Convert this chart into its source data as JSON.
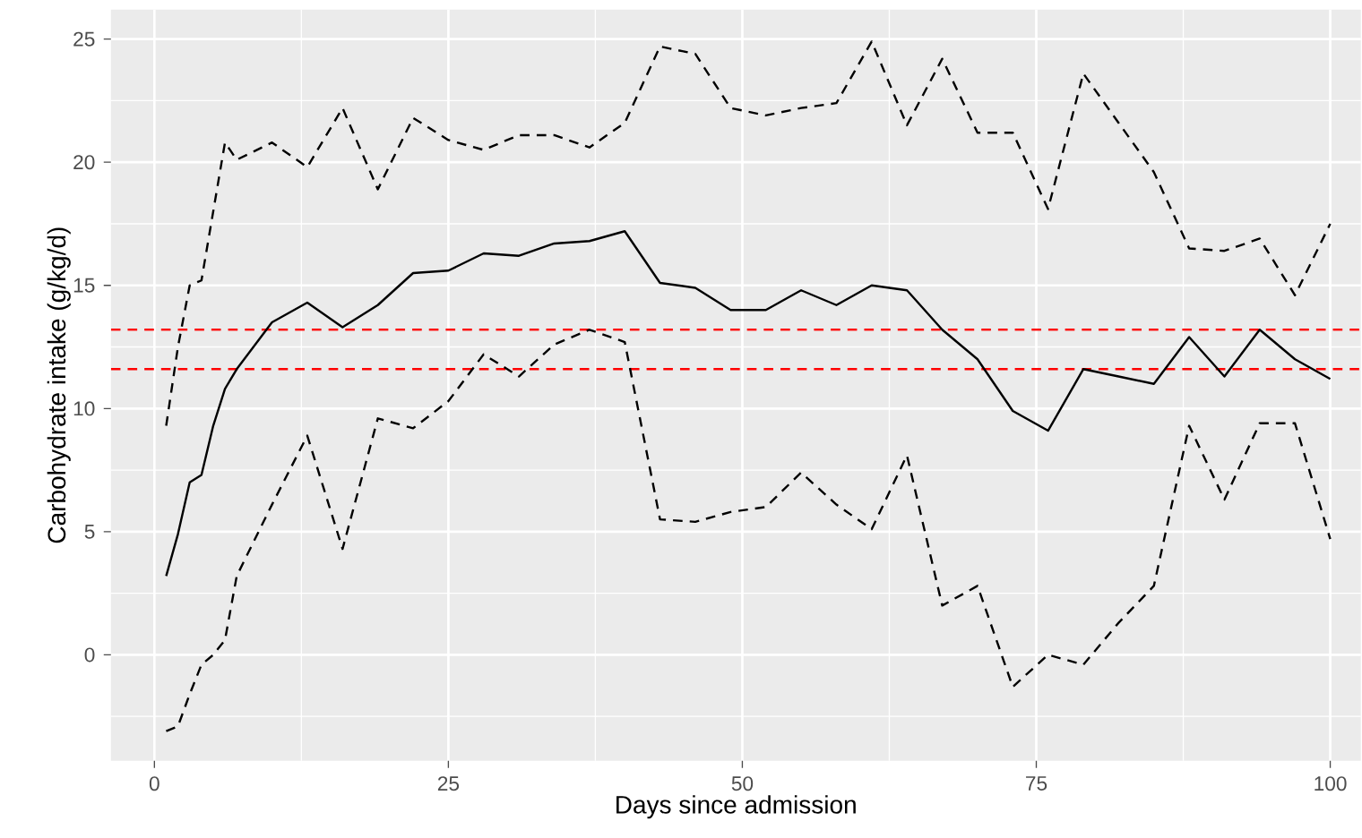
{
  "chart_data": {
    "type": "line",
    "xlabel": "Days since admission",
    "ylabel": "Carbohydrate intake (g/kg/d)",
    "x": [
      1,
      2,
      3,
      4,
      5,
      6,
      7,
      10,
      13,
      16,
      19,
      22,
      25,
      28,
      31,
      34,
      37,
      40,
      43,
      46,
      49,
      52,
      55,
      58,
      61,
      64,
      67,
      70,
      73,
      76,
      79,
      82,
      85,
      88,
      91,
      94,
      97,
      100
    ],
    "series": [
      {
        "color": "#000000",
        "line_style": "dashed",
        "values": [
          9.3,
          12.5,
          15.0,
          15.2,
          18.0,
          20.8,
          20.1,
          20.8,
          19.8,
          22.2,
          18.9,
          21.8,
          20.9,
          20.5,
          21.1,
          21.1,
          20.6,
          21.6,
          24.7,
          24.4,
          22.2,
          21.9,
          22.2,
          22.4,
          24.9,
          21.5,
          24.2,
          21.2,
          21.2,
          18.1,
          23.6,
          21.6,
          19.6,
          16.5,
          16.4,
          16.9,
          14.6,
          17.5
        ]
      },
      {
        "color": "#000000",
        "line_style": "solid",
        "values": [
          3.2,
          4.9,
          7.0,
          7.3,
          9.3,
          10.8,
          11.6,
          13.5,
          14.3,
          13.3,
          14.2,
          15.5,
          15.6,
          16.3,
          16.2,
          16.7,
          16.8,
          17.2,
          15.1,
          14.9,
          14.0,
          14.0,
          14.8,
          14.2,
          15.0,
          14.8,
          13.2,
          12.0,
          9.9,
          9.1,
          11.6,
          11.3,
          11.0,
          12.9,
          11.3,
          13.2,
          12.0,
          11.2
        ]
      },
      {
        "color": "#000000",
        "line_style": "dashed",
        "values": [
          -3.1,
          -2.9,
          -1.6,
          -0.4,
          0.0,
          0.6,
          3.2,
          6.1,
          8.9,
          4.3,
          9.6,
          9.2,
          10.3,
          12.2,
          11.3,
          12.6,
          13.2,
          12.7,
          5.5,
          5.4,
          5.8,
          6.0,
          7.4,
          6.1,
          5.1,
          8.1,
          2.0,
          2.8,
          -1.3,
          0.0,
          -0.4,
          1.3,
          2.8,
          9.3,
          6.3,
          9.4,
          9.4,
          4.7
        ]
      }
    ],
    "ref_lines": [
      {
        "axis": "y",
        "value": 13.2,
        "color": "#ff0000",
        "line_style": "dashed"
      },
      {
        "axis": "y",
        "value": 11.6,
        "color": "#ff0000",
        "line_style": "dashed"
      }
    ],
    "xlim": [
      -3.7,
      102.6
    ],
    "ylim": [
      -4.3,
      26.2
    ],
    "xticks": [
      0,
      25,
      50,
      75,
      100
    ],
    "yticks": [
      0,
      5,
      10,
      15,
      20,
      25
    ],
    "grid": true
  }
}
